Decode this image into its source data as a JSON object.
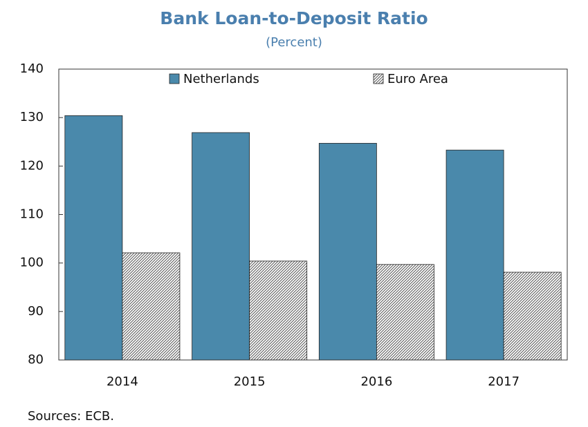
{
  "chart_data": {
    "type": "bar",
    "title": "Bank Loan-to-Deposit Ratio",
    "subtitle": "(Percent)",
    "note": "Sources: ECB.",
    "categories": [
      "2014",
      "2015",
      "2016",
      "2017"
    ],
    "series": [
      {
        "name": "Netherlands",
        "color": "#4a89ab",
        "values": [
          130.4,
          126.9,
          124.7,
          123.3
        ]
      },
      {
        "name": "Euro Area",
        "color": "#555555",
        "pattern": "dots",
        "values": [
          102.1,
          100.4,
          99.7,
          98.1
        ]
      }
    ],
    "ylim": [
      80,
      140
    ],
    "yticks": [
      80,
      90,
      100,
      110,
      120,
      130,
      140
    ],
    "grid": false,
    "legend": "top"
  }
}
